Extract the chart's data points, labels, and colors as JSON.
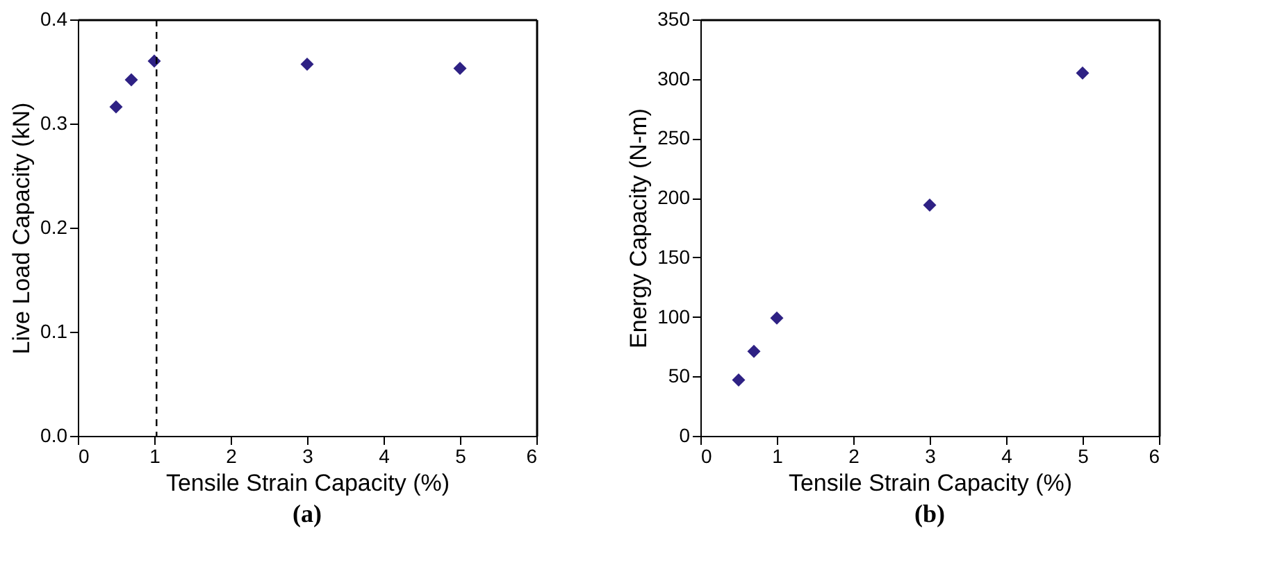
{
  "chart_data": [
    {
      "type": "scatter",
      "title": "(a)",
      "xlabel": "Tensile Strain Capacity (%)",
      "ylabel": "Live Load Capacity (kN)",
      "x": [
        0.5,
        0.7,
        1,
        3,
        5
      ],
      "series": [
        {
          "color": "#2e2184",
          "values": [
            0.316,
            0.342,
            0.36,
            0.357,
            0.353
          ]
        }
      ],
      "xlim": [
        0,
        6
      ],
      "xticks": [
        0,
        1,
        2,
        3,
        4,
        5,
        6
      ],
      "ylim": [
        0,
        0.4
      ],
      "yticks": [
        {
          "value": 0,
          "label": "0.0"
        },
        0.1,
        0.2,
        0.3,
        0.4
      ],
      "ref_lines": [
        {
          "axis": "x",
          "value": 1.03,
          "color": "#000000",
          "line_style": "dashed"
        }
      ],
      "marker": "diamond",
      "grid": false,
      "legend": false
    },
    {
      "type": "scatter",
      "title": "(b)",
      "xlabel": "Tensile Strain Capacity (%)",
      "ylabel": "Energy Capacity (N-m)",
      "x": [
        0.5,
        0.7,
        1,
        3,
        5
      ],
      "series": [
        {
          "color": "#2e2184",
          "values": [
            47,
            71,
            99,
            194,
            305
          ]
        }
      ],
      "xlim": [
        0,
        6
      ],
      "xticks": [
        0,
        1,
        2,
        3,
        4,
        5,
        6
      ],
      "ylim": [
        0,
        350
      ],
      "yticks": [
        0,
        50,
        100,
        150,
        200,
        250,
        300,
        350
      ],
      "marker": "diamond",
      "grid": false,
      "legend": false
    }
  ]
}
